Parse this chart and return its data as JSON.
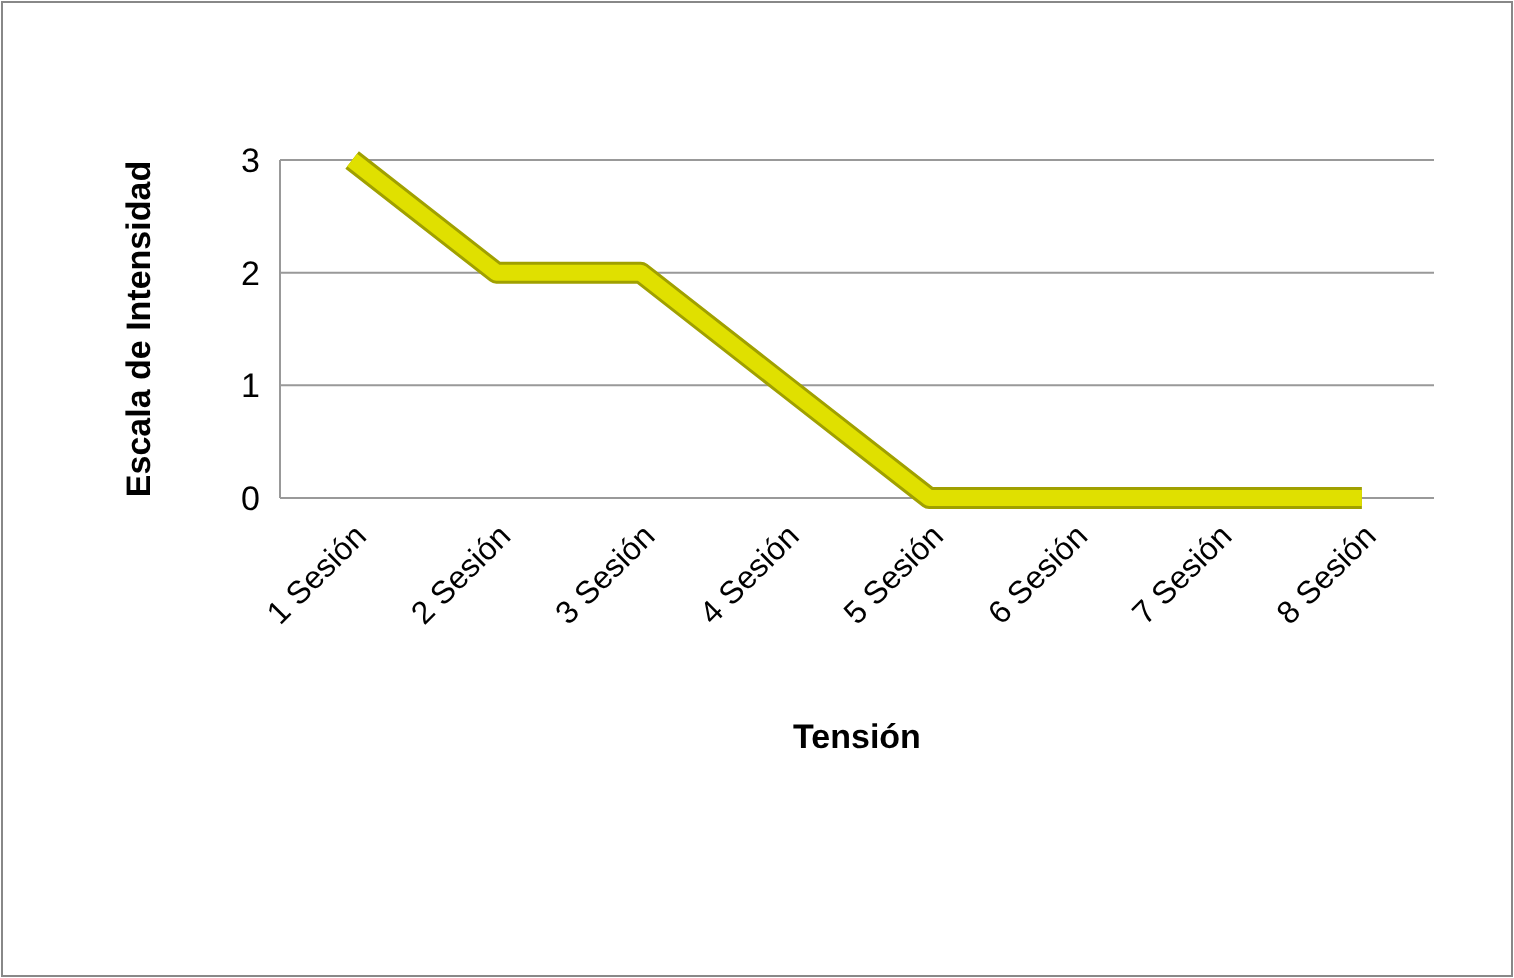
{
  "chart_data": {
    "type": "line",
    "xlabel": "Tensión",
    "ylabel": "Escala de Intensidad",
    "categories": [
      "1 Sesión",
      "2 Sesión",
      "3 Sesión",
      "4 Sesión",
      "5 Sesión",
      "6 Sesión",
      "7 Sesión",
      "8 Sesión"
    ],
    "series": [
      {
        "color": "#e0e000",
        "values": [
          3,
          2,
          2,
          1,
          0,
          0,
          0,
          0
        ]
      }
    ],
    "ylim": [
      0,
      3
    ],
    "yticks": [
      0,
      1,
      2,
      3
    ],
    "grid": "y",
    "marker": "none",
    "line_style": "solid"
  }
}
